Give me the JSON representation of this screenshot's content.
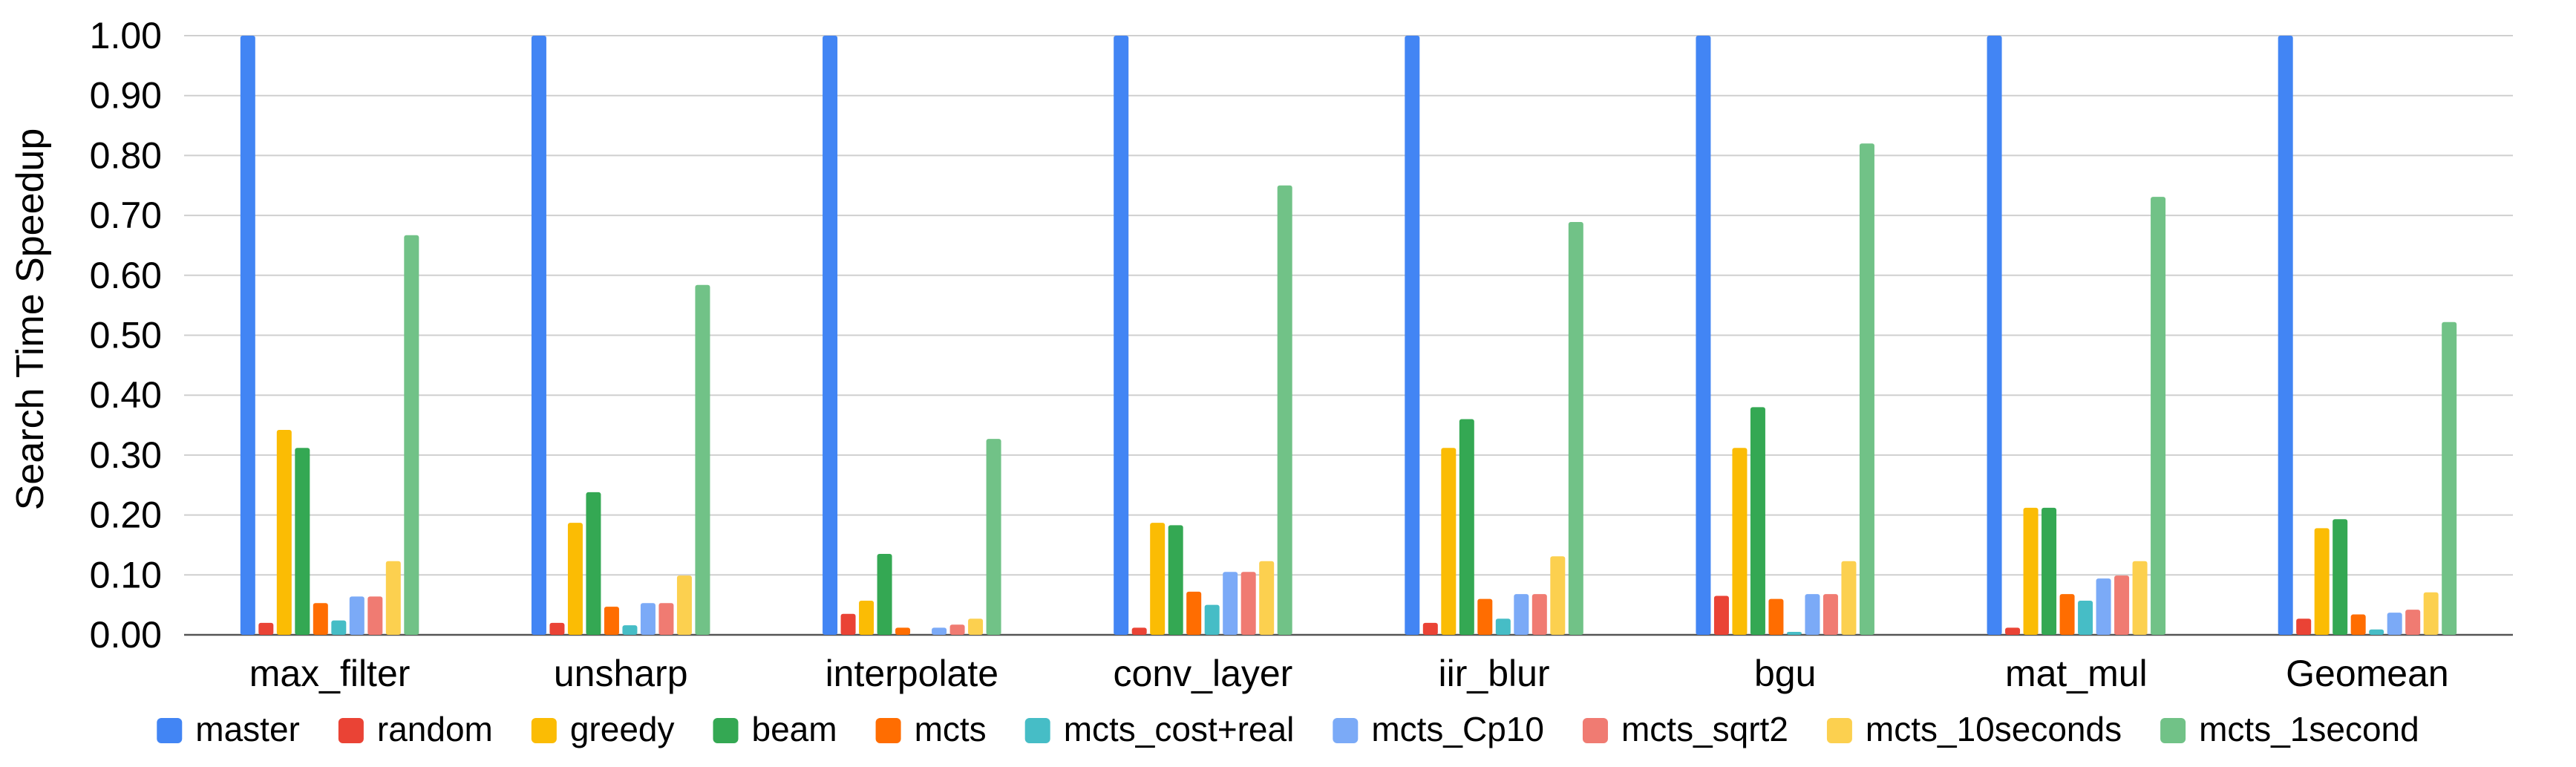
{
  "chart_data": {
    "type": "bar",
    "title": "",
    "xlabel": "",
    "ylabel": "Search Time Speedup",
    "ylim": [
      0,
      1.0
    ],
    "yticks": [
      "0.00",
      "0.10",
      "0.20",
      "0.30",
      "0.40",
      "0.50",
      "0.60",
      "0.70",
      "0.80",
      "0.90",
      "1.00"
    ],
    "grid": true,
    "legend_position": "bottom",
    "categories": [
      "max_filter",
      "unsharp",
      "interpolate",
      "conv_layer",
      "iir_blur",
      "bgu",
      "mat_mul",
      "Geomean"
    ],
    "series": [
      {
        "name": "master",
        "color": "#4285F4",
        "values": [
          1.0,
          1.0,
          1.0,
          1.0,
          1.0,
          1.0,
          1.0,
          1.0
        ]
      },
      {
        "name": "random",
        "color": "#EA4335",
        "values": [
          0.02,
          0.02,
          0.035,
          0.012,
          0.02,
          0.065,
          0.012,
          0.027
        ]
      },
      {
        "name": "greedy",
        "color": "#FBBC04",
        "values": [
          0.342,
          0.187,
          0.057,
          0.187,
          0.312,
          0.312,
          0.212,
          0.178
        ]
      },
      {
        "name": "beam",
        "color": "#34A853",
        "values": [
          0.312,
          0.238,
          0.135,
          0.183,
          0.36,
          0.38,
          0.212,
          0.193
        ]
      },
      {
        "name": "mcts",
        "color": "#FF6D01",
        "values": [
          0.053,
          0.047,
          0.012,
          0.072,
          0.06,
          0.06,
          0.068,
          0.034
        ]
      },
      {
        "name": "mcts_cost+real",
        "color": "#46BDC6",
        "values": [
          0.024,
          0.016,
          0.0,
          0.05,
          0.027,
          0.005,
          0.057,
          0.009
        ]
      },
      {
        "name": "mcts_Cp10",
        "color": "#7BAAF7",
        "values": [
          0.064,
          0.053,
          0.012,
          0.105,
          0.068,
          0.068,
          0.094,
          0.037
        ]
      },
      {
        "name": "mcts_sqrt2",
        "color": "#F07B72",
        "values": [
          0.064,
          0.053,
          0.017,
          0.105,
          0.068,
          0.068,
          0.099,
          0.042
        ]
      },
      {
        "name": "mcts_10seconds",
        "color": "#FCD04F",
        "values": [
          0.123,
          0.099,
          0.027,
          0.123,
          0.131,
          0.123,
          0.123,
          0.071
        ]
      },
      {
        "name": "mcts_1second",
        "color": "#71C287",
        "values": [
          0.667,
          0.584,
          0.327,
          0.75,
          0.689,
          0.82,
          0.731,
          0.522
        ]
      }
    ]
  }
}
